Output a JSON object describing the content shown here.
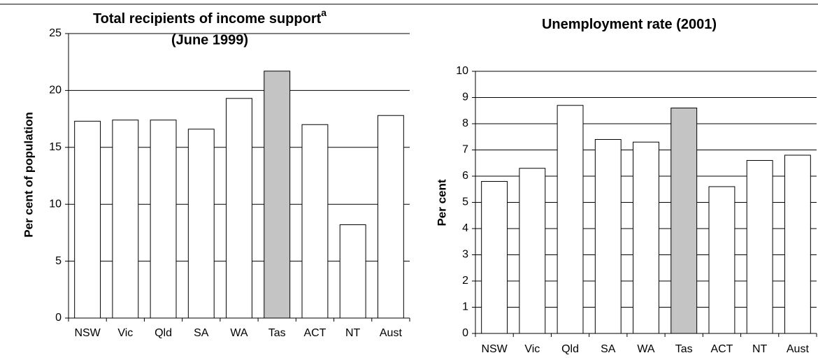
{
  "chart_data": [
    {
      "type": "bar",
      "title": "Total recipients of income support",
      "title_superscript": "a",
      "subtitle": "(June 1999)",
      "y_label": "Per cent of population",
      "categories": [
        "NSW",
        "Vic",
        "Qld",
        "SA",
        "WA",
        "Tas",
        "ACT",
        "NT",
        "Aust"
      ],
      "values": [
        17.3,
        17.4,
        17.4,
        16.6,
        19.3,
        21.7,
        17.0,
        8.2,
        17.8
      ],
      "colors": [
        "#ffffff",
        "#ffffff",
        "#ffffff",
        "#ffffff",
        "#ffffff",
        "#c4c4c4",
        "#ffffff",
        "#ffffff",
        "#ffffff"
      ],
      "ylim": [
        0,
        25
      ],
      "yticks": [
        0,
        5,
        10,
        15,
        20,
        25
      ],
      "grid": true
    },
    {
      "type": "bar",
      "title": "Unemployment rate (2001)",
      "y_label": "Per cent",
      "categories": [
        "NSW",
        "Vic",
        "Qld",
        "SA",
        "WA",
        "Tas",
        "ACT",
        "NT",
        "Aust"
      ],
      "values": [
        5.8,
        6.3,
        8.7,
        7.4,
        7.3,
        8.6,
        5.6,
        6.6,
        6.8
      ],
      "colors": [
        "#ffffff",
        "#ffffff",
        "#ffffff",
        "#ffffff",
        "#ffffff",
        "#c4c4c4",
        "#ffffff",
        "#ffffff",
        "#ffffff"
      ],
      "ylim": [
        0,
        10
      ],
      "yticks": [
        0,
        1,
        2,
        3,
        4,
        5,
        6,
        7,
        8,
        9,
        10
      ],
      "grid": true
    }
  ]
}
